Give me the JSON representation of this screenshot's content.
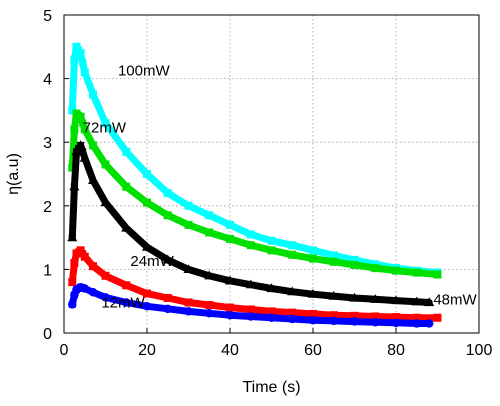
{
  "chart_data": {
    "type": "scatter",
    "xlabel": "Time (s)",
    "ylabel": "η(a.u)",
    "xlim": [
      0,
      100
    ],
    "ylim": [
      0,
      5
    ],
    "xticks": [
      "0",
      "20",
      "40",
      "60",
      "80",
      "100"
    ],
    "yticks": [
      "0",
      "1",
      "2",
      "3",
      "4",
      "5"
    ],
    "grid": true,
    "series": [
      {
        "name": "100mW",
        "color": "#00ffff",
        "marker": "square",
        "points": [
          [
            2.0,
            3.5
          ],
          [
            2.5,
            4.3
          ],
          [
            3.0,
            4.5
          ],
          [
            4,
            4.4
          ],
          [
            5,
            4.1
          ],
          [
            7,
            3.75
          ],
          [
            10,
            3.3
          ],
          [
            15,
            2.85
          ],
          [
            20,
            2.5
          ],
          [
            25,
            2.2
          ],
          [
            30,
            2.0
          ],
          [
            35,
            1.85
          ],
          [
            40,
            1.7
          ],
          [
            45,
            1.55
          ],
          [
            50,
            1.45
          ],
          [
            55,
            1.38
          ],
          [
            60,
            1.3
          ],
          [
            65,
            1.22
          ],
          [
            70,
            1.15
          ],
          [
            75,
            1.08
          ],
          [
            80,
            1.02
          ],
          [
            85,
            0.98
          ],
          [
            90,
            0.95
          ]
        ]
      },
      {
        "name": "72mW",
        "color": "#00e000",
        "marker": "square",
        "points": [
          [
            2.0,
            2.6
          ],
          [
            2.5,
            3.2
          ],
          [
            3.0,
            3.45
          ],
          [
            4,
            3.4
          ],
          [
            5,
            3.2
          ],
          [
            7,
            2.95
          ],
          [
            10,
            2.65
          ],
          [
            15,
            2.3
          ],
          [
            20,
            2.05
          ],
          [
            25,
            1.85
          ],
          [
            30,
            1.7
          ],
          [
            35,
            1.58
          ],
          [
            40,
            1.48
          ],
          [
            45,
            1.38
          ],
          [
            50,
            1.3
          ],
          [
            55,
            1.23
          ],
          [
            60,
            1.17
          ],
          [
            65,
            1.12
          ],
          [
            70,
            1.07
          ],
          [
            75,
            1.02
          ],
          [
            80,
            0.98
          ],
          [
            85,
            0.95
          ],
          [
            90,
            0.92
          ]
        ]
      },
      {
        "name": "48mW",
        "color": "#000000",
        "marker": "triangle",
        "points": [
          [
            2.0,
            1.5
          ],
          [
            2.5,
            2.3
          ],
          [
            3.0,
            2.85
          ],
          [
            4,
            2.95
          ],
          [
            5,
            2.75
          ],
          [
            7,
            2.4
          ],
          [
            10,
            2.05
          ],
          [
            15,
            1.65
          ],
          [
            20,
            1.35
          ],
          [
            25,
            1.15
          ],
          [
            30,
            1.0
          ],
          [
            35,
            0.9
          ],
          [
            40,
            0.82
          ],
          [
            45,
            0.76
          ],
          [
            50,
            0.7
          ],
          [
            55,
            0.65
          ],
          [
            60,
            0.61
          ],
          [
            65,
            0.58
          ],
          [
            70,
            0.55
          ],
          [
            75,
            0.53
          ],
          [
            80,
            0.51
          ],
          [
            85,
            0.49
          ],
          [
            88,
            0.48
          ]
        ]
      },
      {
        "name": "24mW",
        "color": "#ff0000",
        "marker": "square",
        "points": [
          [
            2.0,
            0.8
          ],
          [
            2.5,
            1.1
          ],
          [
            3.0,
            1.25
          ],
          [
            4,
            1.3
          ],
          [
            5,
            1.2
          ],
          [
            7,
            1.05
          ],
          [
            10,
            0.9
          ],
          [
            15,
            0.75
          ],
          [
            20,
            0.62
          ],
          [
            25,
            0.55
          ],
          [
            30,
            0.48
          ],
          [
            35,
            0.44
          ],
          [
            40,
            0.4
          ],
          [
            45,
            0.37
          ],
          [
            50,
            0.34
          ],
          [
            55,
            0.32
          ],
          [
            60,
            0.3
          ],
          [
            65,
            0.28
          ],
          [
            70,
            0.27
          ],
          [
            75,
            0.26
          ],
          [
            80,
            0.25
          ],
          [
            85,
            0.24
          ],
          [
            90,
            0.24
          ]
        ]
      },
      {
        "name": "12mW",
        "color": "#0000ff",
        "marker": "circle",
        "points": [
          [
            2.0,
            0.45
          ],
          [
            2.5,
            0.6
          ],
          [
            3.0,
            0.68
          ],
          [
            4,
            0.72
          ],
          [
            5,
            0.7
          ],
          [
            7,
            0.64
          ],
          [
            10,
            0.56
          ],
          [
            15,
            0.48
          ],
          [
            20,
            0.42
          ],
          [
            25,
            0.38
          ],
          [
            30,
            0.34
          ],
          [
            35,
            0.31
          ],
          [
            40,
            0.28
          ],
          [
            45,
            0.26
          ],
          [
            50,
            0.24
          ],
          [
            55,
            0.22
          ],
          [
            60,
            0.2
          ],
          [
            65,
            0.19
          ],
          [
            70,
            0.18
          ],
          [
            75,
            0.17
          ],
          [
            80,
            0.16
          ],
          [
            85,
            0.15
          ],
          [
            88,
            0.15
          ]
        ]
      }
    ],
    "annotations": [
      {
        "text": "100mW",
        "x": 13,
        "y": 4.05
      },
      {
        "text": "72mW",
        "x": 4.5,
        "y": 3.15
      },
      {
        "text": "24mW",
        "x": 16,
        "y": 1.05
      },
      {
        "text": "12mW",
        "x": 9,
        "y": 0.4
      },
      {
        "text": "48mW",
        "x": 89,
        "y": 0.45
      }
    ]
  }
}
